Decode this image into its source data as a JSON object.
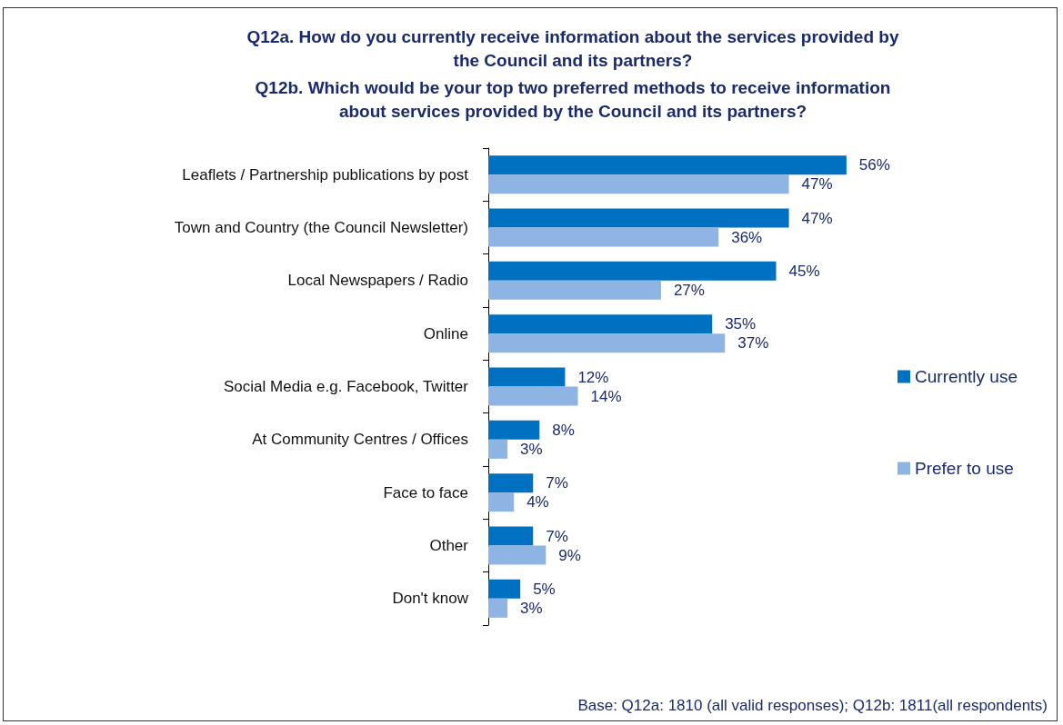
{
  "chart_data": {
    "type": "bar",
    "orientation": "horizontal",
    "title": "Q12a. How do you currently receive information about the services provided by\nthe Council and its partners?",
    "subtitle": "Q12b. Which would be your top two preferred methods to receive information\nabout services provided by the Council and its partners?",
    "categories": [
      "Leaflets / Partnership publications by post",
      "Town and Country (the Council Newsletter)",
      "Local Newspapers / Radio",
      "Online",
      "Social Media e.g. Facebook, Twitter",
      "At Community Centres / Offices",
      "Face to face",
      "Other",
      "Don't know"
    ],
    "series": [
      {
        "name": "Currently use",
        "color": "#0070c0",
        "values": [
          56,
          47,
          45,
          35,
          12,
          8,
          7,
          7,
          5
        ],
        "value_labels": [
          "56%",
          "47%",
          "45%",
          "35%",
          "12%",
          "8%",
          "7%",
          "7%",
          "5%"
        ]
      },
      {
        "name": "Prefer to use",
        "color": "#8eb4e3",
        "values": [
          47,
          36,
          27,
          37,
          14,
          3,
          4,
          9,
          3
        ],
        "value_labels": [
          "47%",
          "36%",
          "27%",
          "37%",
          "14%",
          "3%",
          "4%",
          "9%",
          "3%"
        ]
      }
    ],
    "legend": "right",
    "annotations": [
      "Base: Q12a: 1810 (all valid responses); Q12b: 1811(all respondents)"
    ]
  }
}
